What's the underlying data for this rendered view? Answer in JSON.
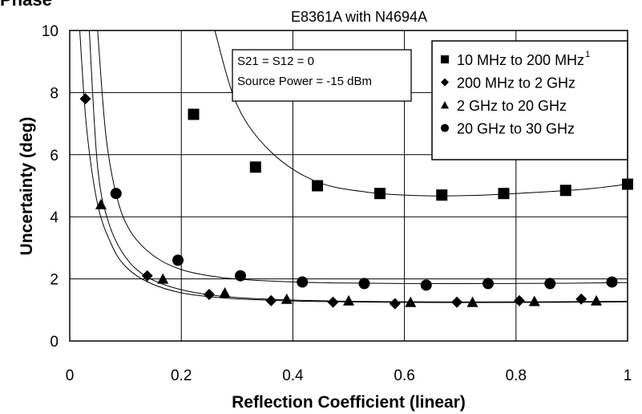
{
  "header_partial_text": "Phase",
  "chart_data": {
    "type": "scatter",
    "title": "E8361A with N4694A",
    "xlabel": "Reflection Coefficient (linear)",
    "ylabel": "Uncertainty (deg)",
    "xlim": [
      0,
      1
    ],
    "ylim": [
      0,
      10
    ],
    "x_ticks": [
      "0",
      "0.2",
      "0.4",
      "0.6",
      "0.8",
      "1"
    ],
    "y_ticks": [
      "0",
      "2",
      "4",
      "6",
      "8",
      "10"
    ],
    "grid": true,
    "legend_position": "top-right",
    "annotation": [
      "S21 = S12 = 0",
      "Source Power = -15 dBm"
    ],
    "series": [
      {
        "name": "10 MHz to 200 MHz",
        "superscript": "1",
        "marker": "square",
        "x": [
          0.222,
          0.333,
          0.444,
          0.556,
          0.667,
          0.778,
          0.889,
          1.0
        ],
        "y": [
          7.3,
          5.6,
          5.0,
          4.75,
          4.7,
          4.75,
          4.85,
          5.05
        ],
        "curve_x": [
          0.26,
          0.3,
          0.36,
          0.44,
          0.53,
          0.63,
          0.73,
          0.83,
          0.93,
          1.0
        ],
        "curve_y": [
          10.0,
          7.6,
          6.1,
          5.15,
          4.8,
          4.68,
          4.69,
          4.78,
          4.9,
          5.05
        ]
      },
      {
        "name": "200 MHz to 2 GHz",
        "marker": "diamond",
        "x": [
          0.028,
          0.139,
          0.25,
          0.361,
          0.472,
          0.583,
          0.694,
          0.806,
          0.917
        ],
        "y": [
          7.8,
          2.1,
          1.5,
          1.3,
          1.25,
          1.2,
          1.25,
          1.3,
          1.35
        ],
        "curve_x": [
          0.018,
          0.03,
          0.05,
          0.075,
          0.1,
          0.14,
          0.2,
          0.28,
          0.38,
          0.5,
          0.65,
          0.8,
          1.0
        ],
        "curve_y": [
          10.0,
          6.9,
          4.4,
          3.1,
          2.4,
          1.9,
          1.55,
          1.38,
          1.3,
          1.26,
          1.24,
          1.24,
          1.26
        ]
      },
      {
        "name": "2 GHz to 20 GHz",
        "marker": "triangle",
        "x": [
          0.056,
          0.167,
          0.278,
          0.389,
          0.5,
          0.611,
          0.722,
          0.833,
          0.944
        ],
        "y": [
          4.4,
          2.0,
          1.55,
          1.35,
          1.3,
          1.25,
          1.25,
          1.28,
          1.3
        ],
        "curve_x": [
          0.035,
          0.05,
          0.07,
          0.1,
          0.14,
          0.2,
          0.28,
          0.38,
          0.5,
          0.65,
          0.8,
          1.0
        ],
        "curve_y": [
          10.0,
          5.6,
          3.8,
          2.7,
          2.05,
          1.65,
          1.43,
          1.33,
          1.28,
          1.26,
          1.26,
          1.28
        ]
      },
      {
        "name": "20 GHz to 30 GHz",
        "marker": "circle",
        "x": [
          0.083,
          0.194,
          0.306,
          0.417,
          0.528,
          0.639,
          0.75,
          0.861,
          0.972
        ],
        "y": [
          4.75,
          2.6,
          2.1,
          1.9,
          1.85,
          1.8,
          1.85,
          1.85,
          1.9
        ],
        "curve_x": [
          0.05,
          0.065,
          0.085,
          0.11,
          0.15,
          0.2,
          0.27,
          0.36,
          0.47,
          0.6,
          0.75,
          0.9,
          1.0
        ],
        "curve_y": [
          10.0,
          6.6,
          4.6,
          3.5,
          2.75,
          2.3,
          2.05,
          1.93,
          1.87,
          1.85,
          1.85,
          1.86,
          1.88
        ]
      }
    ]
  }
}
